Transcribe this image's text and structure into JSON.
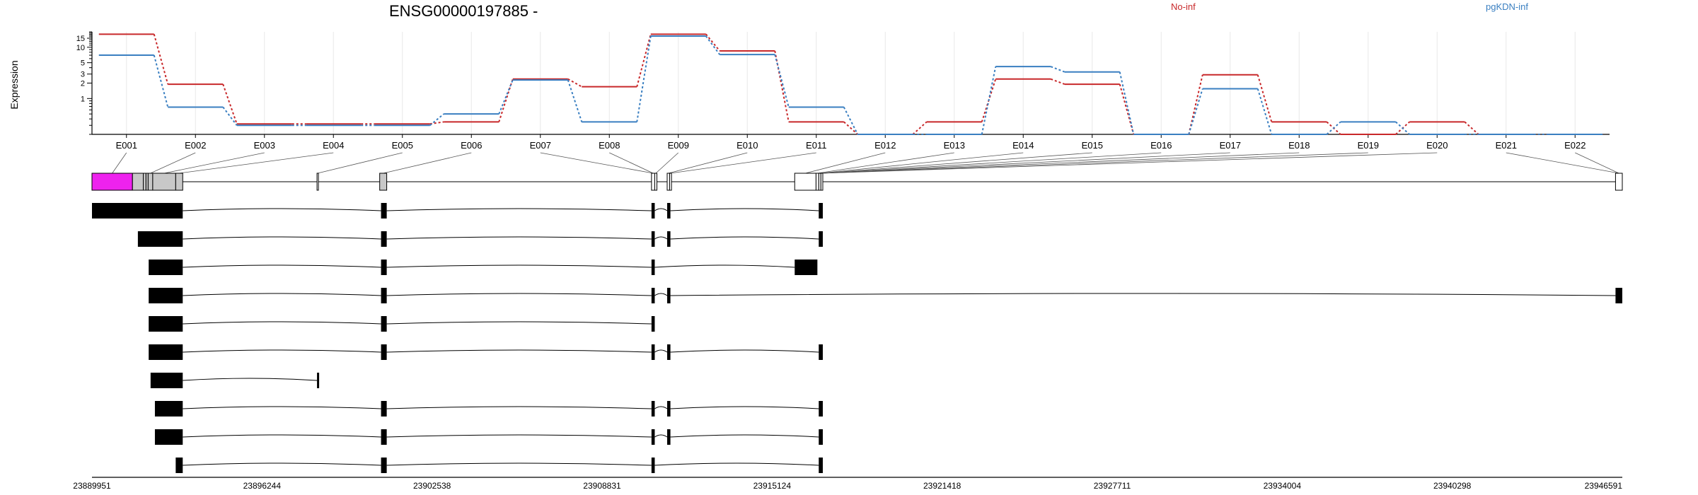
{
  "chart_data": {
    "type": "line",
    "title": "ENSG00000197885 -",
    "ylabel": "Expression",
    "xlabel": "",
    "y_scale": "log",
    "y_ticks": [
      1,
      2,
      3,
      5,
      10,
      15
    ],
    "grid": true,
    "legend_placement": "top-right",
    "categories": [
      "E001",
      "E002",
      "E003",
      "E004",
      "E005",
      "E006",
      "E007",
      "E008",
      "E009",
      "E010",
      "E011",
      "E012",
      "E013",
      "E014",
      "E015",
      "E016",
      "E017",
      "E018",
      "E019",
      "E020",
      "E021",
      "E022"
    ],
    "series": [
      {
        "name": "No-inf",
        "color": "#c8282a",
        "values": [
          18,
          1.9,
          0.32,
          0.32,
          0.32,
          0.35,
          2.4,
          1.7,
          18,
          8.5,
          0.35,
          0.2,
          0.35,
          2.4,
          1.9,
          0.2,
          2.9,
          0.35,
          0.2,
          0.35,
          0.2,
          0.2
        ]
      },
      {
        "name": "pgKDN-inf",
        "color": "#3a7fc1",
        "values": [
          7,
          0.68,
          0.3,
          0.3,
          0.3,
          0.5,
          2.3,
          0.35,
          16.5,
          7.2,
          0.68,
          0.2,
          0.2,
          4.2,
          3.3,
          0.2,
          1.55,
          0.2,
          0.35,
          0.2,
          0.2,
          0.2
        ]
      }
    ],
    "genomic_axis": {
      "tick_labels": [
        "23889951",
        "23896244",
        "23902538",
        "23908831",
        "23915124",
        "23921418",
        "23927711",
        "23934004",
        "23940298",
        "23946591"
      ],
      "start": 23889951,
      "end": 23946591
    },
    "bins": [
      {
        "s": 23889951,
        "e": 23891450,
        "fill": "#ee22ee"
      },
      {
        "s": 23891450,
        "e": 23891850,
        "fill": "#c8c8c8"
      },
      {
        "s": 23891850,
        "e": 23891950,
        "fill": "#c8c8c8"
      },
      {
        "s": 23891950,
        "e": 23892030,
        "fill": "#c8c8c8"
      },
      {
        "s": 23892030,
        "e": 23892200,
        "fill": "#c8c8c8"
      },
      {
        "s": 23892200,
        "e": 23893050,
        "fill": "#c8c8c8"
      },
      {
        "s": 23893050,
        "e": 23893310,
        "fill": "#c8c8c8"
      },
      {
        "s": 23898280,
        "e": 23898320,
        "fill": "#ffffff"
      },
      {
        "s": 23900600,
        "e": 23900860,
        "fill": "#c8c8c8"
      },
      {
        "s": 23910660,
        "e": 23910780,
        "fill": "#ffffff"
      },
      {
        "s": 23910780,
        "e": 23910860,
        "fill": "#ffffff"
      },
      {
        "s": 23911240,
        "e": 23911330,
        "fill": "#ffffff"
      },
      {
        "s": 23911330,
        "e": 23911400,
        "fill": "#ffffff"
      },
      {
        "s": 23915960,
        "e": 23916750,
        "fill": "#ffffff"
      },
      {
        "s": 23916750,
        "e": 23916850,
        "fill": "#ffffff"
      },
      {
        "s": 23916850,
        "e": 23916930,
        "fill": "#ffffff"
      },
      {
        "s": 23916930,
        "e": 23917000,
        "fill": "#ffffff"
      },
      {
        "s": 23946340,
        "e": 23946591,
        "fill": "#ffffff"
      }
    ],
    "bin_links": [
      0,
      4,
      5,
      6,
      7,
      8,
      9,
      9,
      10,
      11,
      12,
      13,
      14,
      15,
      16,
      16,
      16,
      16,
      16,
      16,
      17,
      17
    ],
    "transcripts": [
      {
        "exons": [
          [
            23889951,
            23893310
          ],
          [
            23900650,
            23900860
          ],
          [
            23910660,
            23910780
          ],
          [
            23911240,
            23911360
          ],
          [
            23916850,
            23917000
          ]
        ]
      },
      {
        "exons": [
          [
            23891650,
            23893310
          ],
          [
            23900650,
            23900860
          ],
          [
            23910660,
            23910780
          ],
          [
            23911240,
            23911360
          ],
          [
            23916850,
            23917000
          ]
        ]
      },
      {
        "exons": [
          [
            23892050,
            23893310
          ],
          [
            23900650,
            23900860
          ],
          [
            23910660,
            23910780
          ],
          [
            23915960,
            23916800
          ]
        ]
      },
      {
        "exons": [
          [
            23892050,
            23893310
          ],
          [
            23900650,
            23900860
          ],
          [
            23910660,
            23910780
          ],
          [
            23911240,
            23911360
          ],
          [
            23946340,
            23946591
          ]
        ]
      },
      {
        "exons": [
          [
            23892050,
            23893310
          ],
          [
            23900650,
            23900860
          ],
          [
            23910660,
            23910780
          ]
        ]
      },
      {
        "exons": [
          [
            23892050,
            23893310
          ],
          [
            23900650,
            23900860
          ],
          [
            23910660,
            23910780
          ],
          [
            23911240,
            23911360
          ],
          [
            23916850,
            23917000
          ]
        ]
      },
      {
        "exons": [
          [
            23892120,
            23893310
          ],
          [
            23898280,
            23898320
          ]
        ]
      },
      {
        "exons": [
          [
            23892280,
            23893310
          ],
          [
            23900650,
            23900860
          ],
          [
            23910660,
            23910780
          ],
          [
            23911240,
            23911360
          ],
          [
            23916850,
            23917000
          ]
        ]
      },
      {
        "exons": [
          [
            23892280,
            23893310
          ],
          [
            23900650,
            23900860
          ],
          [
            23910660,
            23910780
          ],
          [
            23911240,
            23911360
          ],
          [
            23916850,
            23917000
          ]
        ]
      },
      {
        "exons": [
          [
            23893050,
            23893310
          ],
          [
            23900650,
            23900860
          ],
          [
            23910660,
            23910780
          ],
          [
            23916850,
            23917000
          ]
        ]
      }
    ]
  }
}
